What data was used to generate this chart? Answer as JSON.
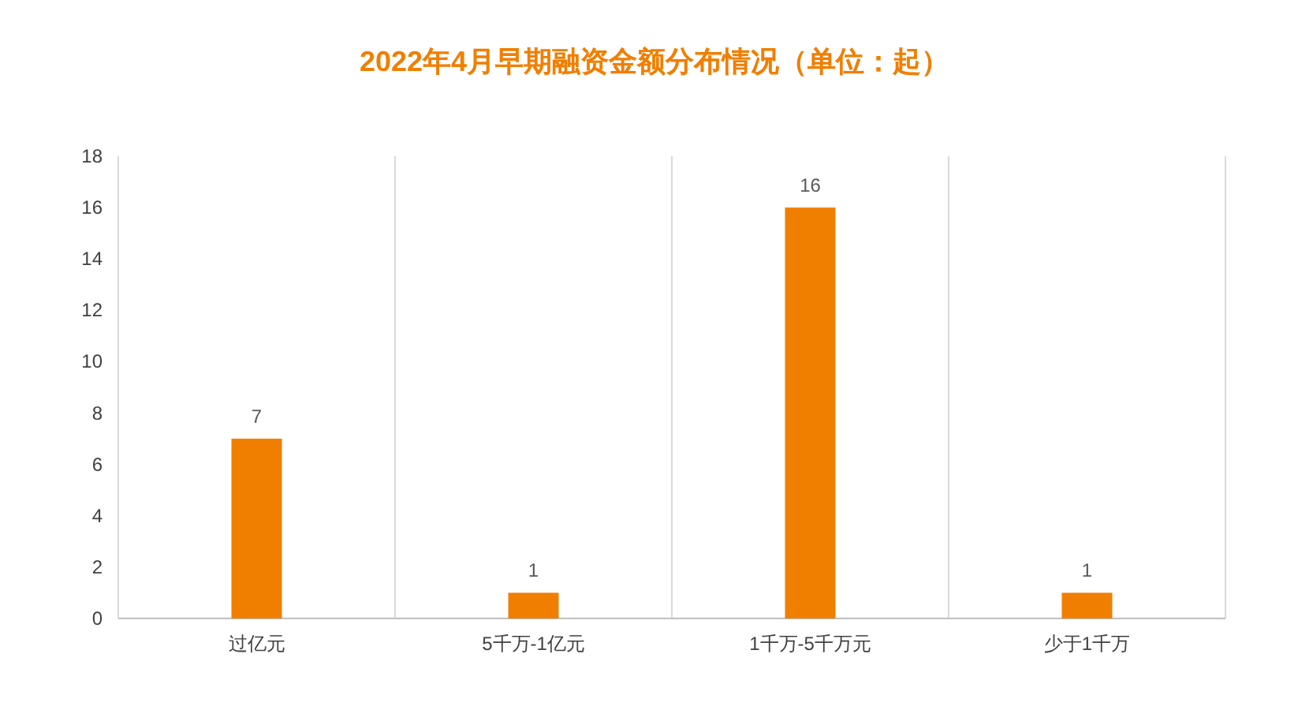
{
  "chart_data": {
    "type": "bar",
    "title": "2022年4月早期融资金额分布情况（单位：起）",
    "categories": [
      "过亿元",
      "5千万-1亿元",
      "1千万-5千万元",
      "少于1千万"
    ],
    "values": [
      7,
      1,
      16,
      1
    ],
    "color": "#f07f00",
    "ylim": [
      0,
      18
    ],
    "yticks": [
      0,
      2,
      4,
      6,
      8,
      10,
      12,
      14,
      16,
      18
    ],
    "grid": "x",
    "data_labels": true
  }
}
